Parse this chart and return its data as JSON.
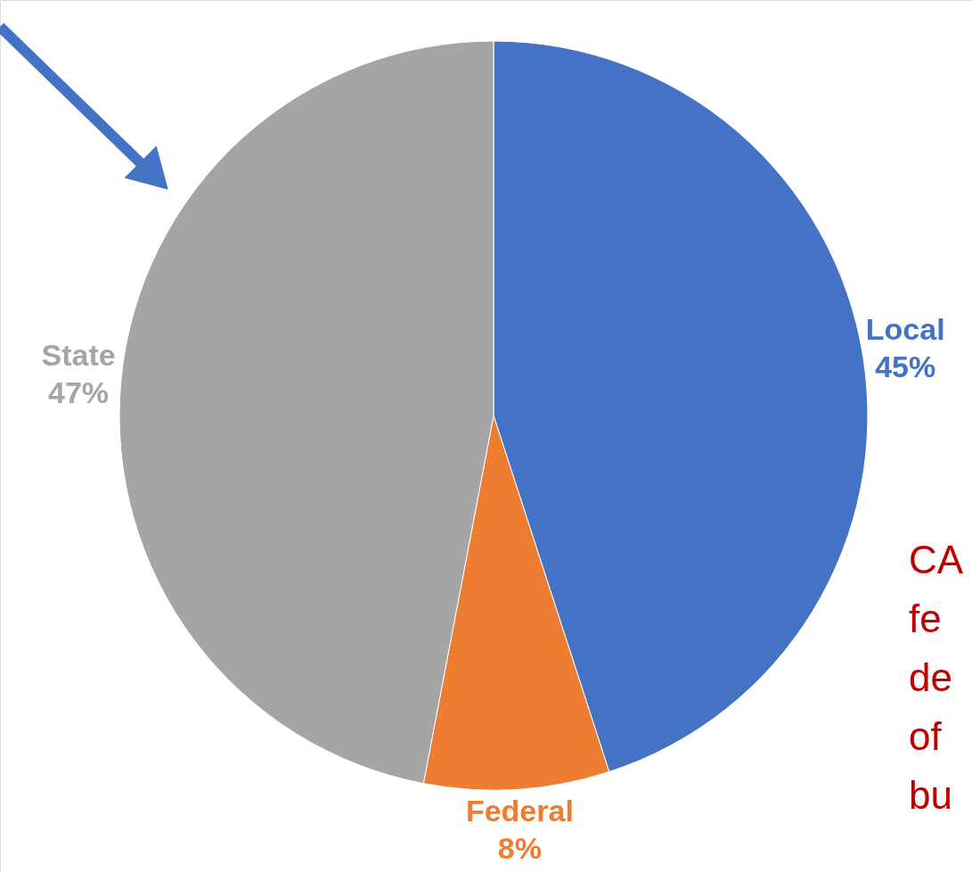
{
  "chart_data": {
    "type": "pie",
    "categories": [
      "Local",
      "Federal",
      "State"
    ],
    "values": [
      45,
      8,
      47
    ],
    "value_labels": [
      "45%",
      "8%",
      "47%"
    ],
    "colors": [
      "#4472c4",
      "#ed7d31",
      "#a5a5a5"
    ],
    "annotations": [
      "CA",
      "fe",
      "de",
      "of",
      "bu"
    ]
  }
}
